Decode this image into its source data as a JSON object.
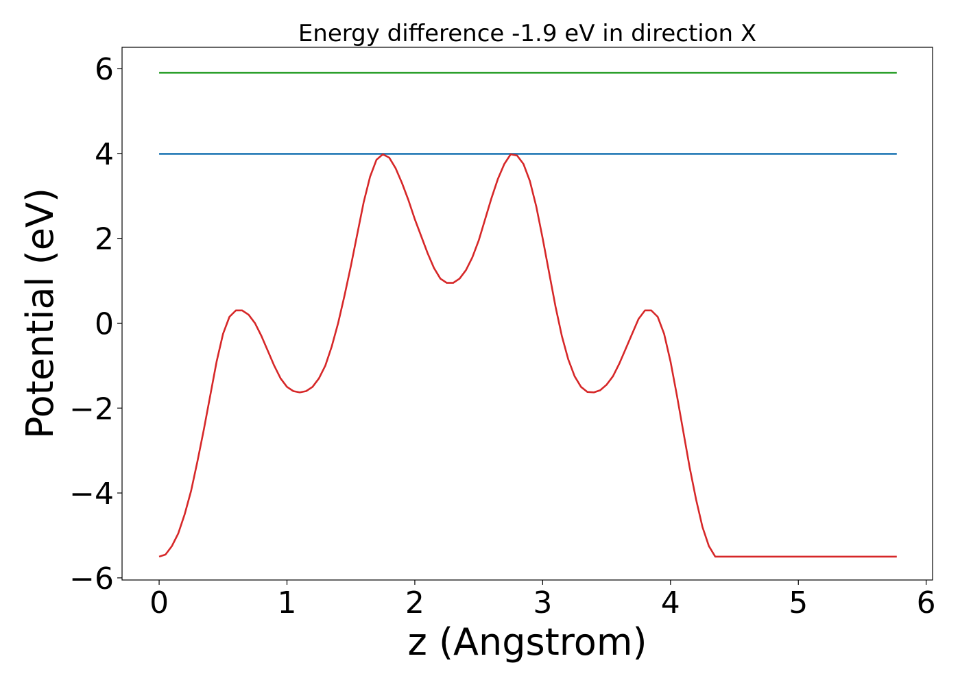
{
  "chart_data": {
    "type": "line",
    "title": "Energy difference -1.9 eV in direction X",
    "xlabel": "z (Angstrom)",
    "ylabel": "Potential (eV)",
    "xlim": [
      -0.29,
      6.05
    ],
    "ylim": [
      -6.05,
      6.5
    ],
    "grid": false,
    "x_ticks": [
      0,
      1,
      2,
      3,
      4,
      5,
      6
    ],
    "x_tick_labels": [
      "0",
      "1",
      "2",
      "3",
      "4",
      "5",
      "6"
    ],
    "y_ticks": [
      -6,
      -4,
      -2,
      0,
      2,
      4,
      6
    ],
    "y_tick_labels": [
      "−6",
      "−4",
      "−2",
      "0",
      "2",
      "4",
      "6"
    ],
    "series": [
      {
        "color": "#2ca02c",
        "x": [
          0,
          5.77
        ],
        "y": [
          5.9,
          5.9
        ]
      },
      {
        "color": "#1f77b4",
        "x": [
          0,
          5.77
        ],
        "y": [
          3.99,
          3.99
        ]
      },
      {
        "color": "#d62728",
        "x": [
          0,
          0.05,
          0.1,
          0.15,
          0.2,
          0.25,
          0.3,
          0.35,
          0.4,
          0.45,
          0.5,
          0.55,
          0.6,
          0.65,
          0.7,
          0.75,
          0.8,
          0.85,
          0.9,
          0.95,
          1.0,
          1.05,
          1.1,
          1.15,
          1.2,
          1.25,
          1.3,
          1.35,
          1.4,
          1.45,
          1.5,
          1.55,
          1.6,
          1.65,
          1.7,
          1.75,
          1.8,
          1.85,
          1.9,
          1.95,
          2.0,
          2.05,
          2.1,
          2.15,
          2.2,
          2.25,
          2.3,
          2.35,
          2.4,
          2.45,
          2.5,
          2.55,
          2.6,
          2.65,
          2.7,
          2.75,
          2.8,
          2.85,
          2.9,
          2.95,
          3.0,
          3.05,
          3.1,
          3.15,
          3.2,
          3.25,
          3.3,
          3.35,
          3.4,
          3.45,
          3.5,
          3.55,
          3.6,
          3.65,
          3.7,
          3.75,
          3.8,
          3.85,
          3.9,
          3.95,
          4.0,
          4.05,
          4.1,
          4.15,
          4.2,
          4.25,
          4.3,
          4.35,
          4.4,
          4.45,
          4.5,
          4.55,
          4.6,
          4.65,
          4.7,
          4.75,
          4.8,
          4.85,
          4.9,
          4.95,
          5.0,
          5.05,
          5.1,
          5.15,
          5.2,
          5.25,
          5.3,
          5.35,
          5.4,
          5.45,
          5.5,
          5.55,
          5.6,
          5.65,
          5.7,
          5.77
        ],
        "y": [
          -5.5,
          -5.45,
          -5.25,
          -4.95,
          -4.5,
          -3.95,
          -3.25,
          -2.5,
          -1.7,
          -0.9,
          -0.25,
          0.15,
          0.3,
          0.3,
          0.2,
          0.0,
          -0.3,
          -0.65,
          -1.0,
          -1.3,
          -1.5,
          -1.6,
          -1.63,
          -1.6,
          -1.5,
          -1.3,
          -1.0,
          -0.55,
          0.0,
          0.65,
          1.35,
          2.1,
          2.85,
          3.45,
          3.85,
          3.98,
          3.9,
          3.65,
          3.3,
          2.9,
          2.45,
          2.05,
          1.65,
          1.3,
          1.05,
          0.95,
          0.95,
          1.05,
          1.25,
          1.55,
          1.95,
          2.45,
          2.95,
          3.4,
          3.75,
          3.98,
          3.95,
          3.75,
          3.35,
          2.75,
          2.0,
          1.2,
          0.4,
          -0.3,
          -0.85,
          -1.25,
          -1.5,
          -1.62,
          -1.63,
          -1.58,
          -1.45,
          -1.25,
          -0.95,
          -0.6,
          -0.25,
          0.1,
          0.3,
          0.3,
          0.15,
          -0.25,
          -0.9,
          -1.7,
          -2.55,
          -3.4,
          -4.15,
          -4.8,
          -5.25,
          -5.5,
          -5.5,
          -5.5,
          -5.5,
          -5.5,
          -5.5,
          -5.5,
          -5.5,
          -5.5,
          -5.5,
          -5.5,
          -5.5,
          -5.5,
          -5.5,
          -5.5,
          -5.5,
          -5.5,
          -5.5,
          -5.5,
          -5.5,
          -5.5,
          -5.5,
          -5.5,
          -5.5,
          -5.5,
          -5.5,
          -5.5,
          -5.5,
          -5.5
        ]
      }
    ]
  }
}
